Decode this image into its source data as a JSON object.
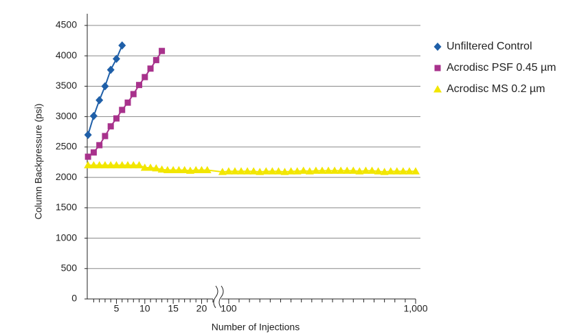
{
  "chart_data": {
    "type": "line",
    "xlabel": "Number of Injections",
    "ylabel": "Column Backpressure (psi)",
    "ylim": [
      0,
      4500
    ],
    "yticks": [
      0,
      500,
      1000,
      1500,
      2000,
      2500,
      3000,
      3500,
      4000,
      4500
    ],
    "grid": true,
    "x_segments": [
      {
        "xlim": [
          -0.5,
          22
        ],
        "xticks": [
          5,
          10,
          15,
          20
        ],
        "xminorticks": [
          1,
          2,
          3,
          4,
          6,
          7,
          8,
          9,
          11,
          12,
          13,
          14,
          16,
          17,
          18,
          19,
          21,
          22
        ]
      },
      {
        "xlim": [
          64,
          1000
        ],
        "xticks": [
          100,
          {
            "value": 1000,
            "label": "1,000"
          }
        ],
        "xminorticks": [
          150,
          200,
          250,
          300,
          350,
          400,
          450,
          500,
          550,
          600,
          650,
          700,
          750,
          800,
          850,
          900,
          950
        ]
      }
    ],
    "legend": "right",
    "series": [
      {
        "name": "Unfiltered Control",
        "color": "#1f5fa8",
        "marker": "diamond",
        "x": [
          0,
          1,
          2,
          3,
          4,
          5,
          6
        ],
        "values": [
          2700,
          3010,
          3270,
          3500,
          3770,
          3950,
          4170
        ]
      },
      {
        "name": "Acrodisc PSF 0.45 µm",
        "color": "#a8328c",
        "marker": "square",
        "x": [
          0,
          1,
          2,
          3,
          4,
          5,
          6,
          7,
          8,
          9,
          10,
          11,
          12,
          13
        ],
        "values": [
          2340,
          2410,
          2530,
          2680,
          2840,
          2970,
          3110,
          3230,
          3370,
          3520,
          3650,
          3790,
          3930,
          4080
        ]
      },
      {
        "name": "Acrodisc MS 0.2 µm",
        "color": "#f2e600",
        "marker": "triangle",
        "x": [
          0,
          1,
          2,
          3,
          4,
          5,
          6,
          7,
          8,
          9,
          10,
          11,
          12,
          13,
          14,
          15,
          16,
          17,
          18,
          19,
          20,
          21,
          70,
          100,
          130,
          160,
          190,
          220,
          250,
          280,
          310,
          340,
          370,
          400,
          430,
          460,
          490,
          520,
          550,
          580,
          610,
          640,
          670,
          700,
          730,
          760,
          790,
          820,
          850,
          880,
          910,
          940,
          970,
          1000
        ],
        "values": [
          2200,
          2200,
          2200,
          2200,
          2200,
          2200,
          2200,
          2200,
          2200,
          2200,
          2160,
          2160,
          2150,
          2130,
          2120,
          2120,
          2120,
          2120,
          2110,
          2120,
          2120,
          2120,
          2090,
          2100,
          2100,
          2100,
          2100,
          2100,
          2090,
          2100,
          2100,
          2100,
          2090,
          2100,
          2100,
          2110,
          2100,
          2110,
          2110,
          2110,
          2110,
          2110,
          2110,
          2110,
          2100,
          2110,
          2110,
          2100,
          2090,
          2100,
          2100,
          2100,
          2100,
          2100
        ]
      }
    ]
  }
}
